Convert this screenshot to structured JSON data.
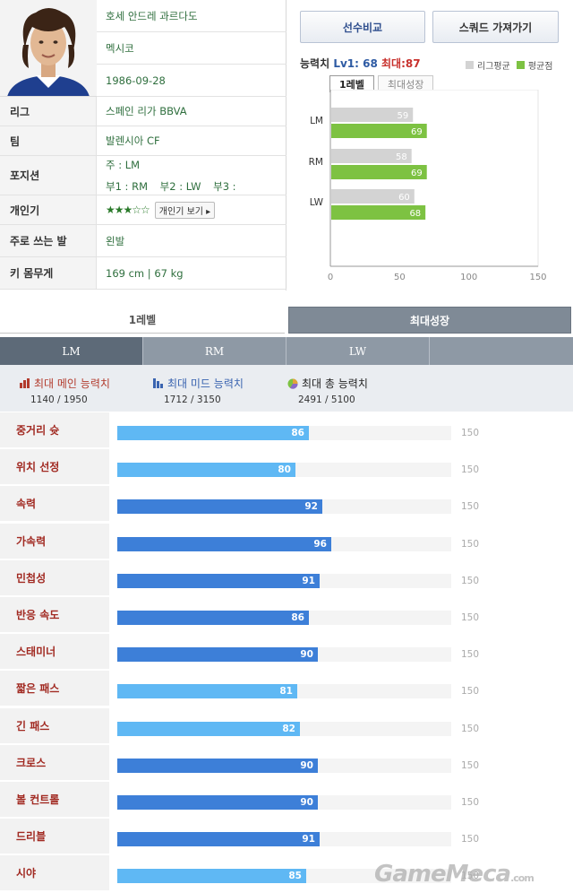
{
  "player": {
    "name": "호세 안드레 과르다도",
    "nation": "멕시코",
    "birth": "1986-09-28",
    "league_label": "리그",
    "league": "스페인 리가 BBVA",
    "team_label": "팀",
    "team": "발렌시아 CF",
    "position_label": "포지션",
    "main_pos": "주 : LM",
    "sub1": "부1 : RM",
    "sub2": "부2 : LW",
    "sub3": "부3 :",
    "popularity_label": "개인기",
    "stars": "★★★☆☆",
    "pop_button": "개인기 보기",
    "foot_label": "주로 쓰는 발",
    "foot": "왼발",
    "body_label": "키 몸무게",
    "body": "169 cm | 67 kg"
  },
  "buttons": {
    "compare": "선수비교",
    "squad": "스쿼드 가져가기"
  },
  "ability": {
    "label": "능력치",
    "lv": "Lv1: 68",
    "max": "최대:87",
    "legend_league": "리그평균",
    "legend_avg": "평균점",
    "tab_lv1": "1레벨",
    "tab_max": "최대성장",
    "colors": {
      "league": "#d3d3d3",
      "avg": "#7dc242"
    }
  },
  "chart_data": {
    "type": "bar",
    "orientation": "horizontal",
    "categories": [
      "LM",
      "RM",
      "LW"
    ],
    "series": [
      {
        "name": "리그평균",
        "values": [
          59,
          58,
          60
        ]
      },
      {
        "name": "평균점",
        "values": [
          69,
          69,
          68
        ]
      }
    ],
    "xlim": [
      0,
      150
    ],
    "xticks": [
      "0",
      "50",
      "100",
      "150"
    ]
  },
  "level_tabs": {
    "lv1": "1레벨",
    "max": "최대성장"
  },
  "positions": [
    "LM",
    "RM",
    "LW",
    ""
  ],
  "summary": {
    "main_label": "최대 메인 능력치",
    "main_val": "1140 / 1950",
    "mid_label": "최대 미드 능력치",
    "mid_val": "1712 / 3150",
    "total_label": "최대 총 능력치",
    "total_val": "2491 / 5100"
  },
  "stats_max": "150",
  "stats": [
    {
      "label": "중거리 슛",
      "value": "86",
      "num": 86,
      "color": "#5fb8f4"
    },
    {
      "label": "위치 선정",
      "value": "80",
      "num": 80,
      "color": "#5fb8f4"
    },
    {
      "label": "속력",
      "value": "92",
      "num": 92,
      "color": "#3d7fd8"
    },
    {
      "label": "가속력",
      "value": "96",
      "num": 96,
      "color": "#3d7fd8"
    },
    {
      "label": "민첩성",
      "value": "91",
      "num": 91,
      "color": "#3d7fd8"
    },
    {
      "label": "반응 속도",
      "value": "86",
      "num": 86,
      "color": "#3d7fd8"
    },
    {
      "label": "스태미너",
      "value": "90",
      "num": 90,
      "color": "#3d7fd8"
    },
    {
      "label": "짧은 패스",
      "value": "81",
      "num": 81,
      "color": "#5fb8f4"
    },
    {
      "label": "긴 패스",
      "value": "82",
      "num": 82,
      "color": "#5fb8f4"
    },
    {
      "label": "크로스",
      "value": "90",
      "num": 90,
      "color": "#3d7fd8"
    },
    {
      "label": "볼 컨트롤",
      "value": "90",
      "num": 90,
      "color": "#3d7fd8"
    },
    {
      "label": "드리블",
      "value": "91",
      "num": 91,
      "color": "#3d7fd8"
    },
    {
      "label": "시야",
      "value": "85",
      "num": 85,
      "color": "#5fb8f4"
    }
  ],
  "watermark": "GameMeca",
  "watermark_domain": ".com"
}
